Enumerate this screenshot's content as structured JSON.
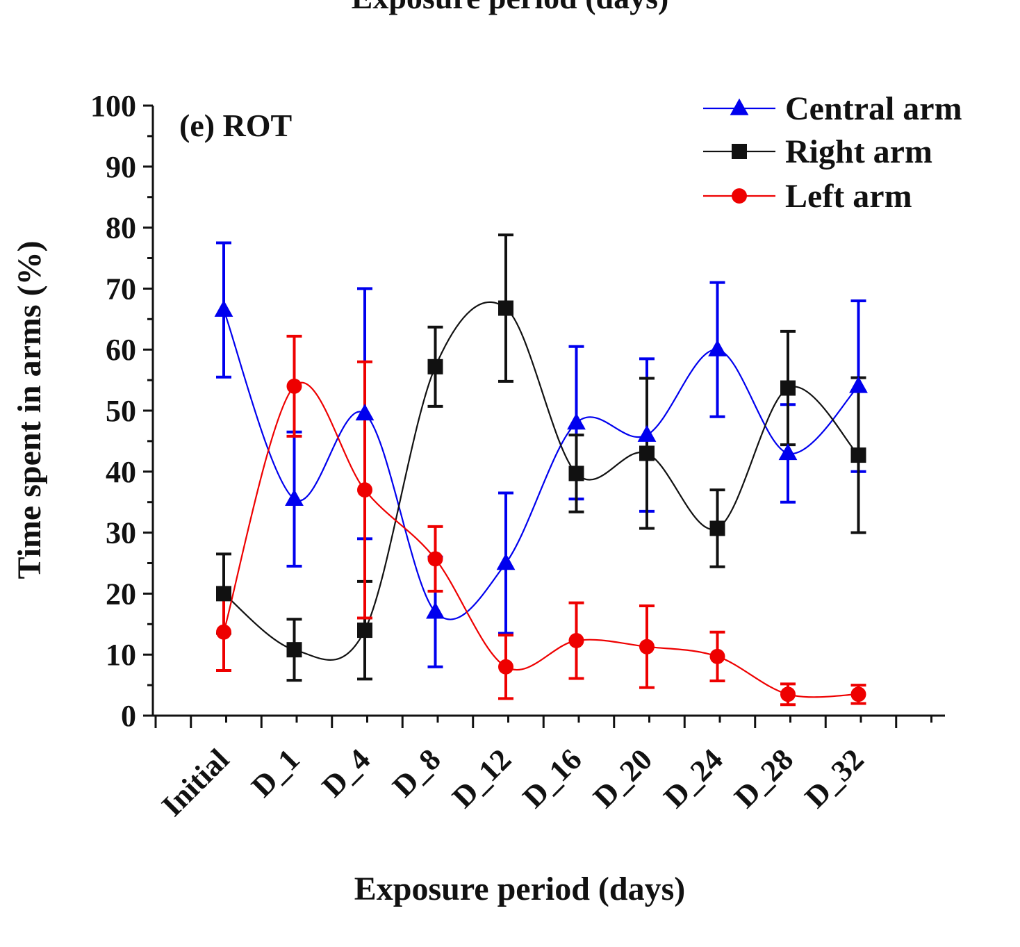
{
  "header_fragment": "Exposure period (days)",
  "chart_data": {
    "type": "line",
    "panel_label": "(e) ROT",
    "xlabel": "Exposure period (days)",
    "ylabel": "Time spent in arms (%)",
    "ylim": [
      0,
      100
    ],
    "yticks": [
      "0",
      "10",
      "20",
      "30",
      "40",
      "50",
      "60",
      "70",
      "80",
      "90",
      "100"
    ],
    "categories": [
      "Initial",
      "D_1",
      "D_4",
      "D_8",
      "D_12",
      "D_16",
      "D_20",
      "D_24",
      "D_28",
      "D_32"
    ],
    "legend_position": "top-right",
    "grid": false,
    "series": [
      {
        "name": "Central arm",
        "color": "#0000ee",
        "marker": "triangle",
        "values": [
          66.5,
          35.5,
          49.5,
          17.0,
          25.0,
          48.0,
          46.0,
          60.0,
          43.0,
          54.0
        ],
        "errors": [
          11.0,
          11.0,
          20.5,
          9.0,
          11.5,
          12.5,
          12.5,
          11.0,
          8.0,
          14.0
        ]
      },
      {
        "name": "Right arm",
        "color": "#111111",
        "marker": "square",
        "values": [
          20.0,
          10.8,
          14.0,
          57.2,
          66.8,
          39.7,
          43.0,
          30.7,
          53.7,
          42.7
        ],
        "errors": [
          6.5,
          5.0,
          8.0,
          6.5,
          12.0,
          6.3,
          12.3,
          6.3,
          9.3,
          12.7
        ]
      },
      {
        "name": "Left arm",
        "color": "#ee0000",
        "marker": "circle",
        "values": [
          13.7,
          54.0,
          37.0,
          25.7,
          8.0,
          12.3,
          11.3,
          9.7,
          3.5,
          3.5
        ],
        "errors": [
          6.3,
          8.2,
          21.0,
          5.3,
          5.2,
          6.2,
          6.7,
          4.0,
          1.7,
          1.5
        ]
      }
    ]
  }
}
